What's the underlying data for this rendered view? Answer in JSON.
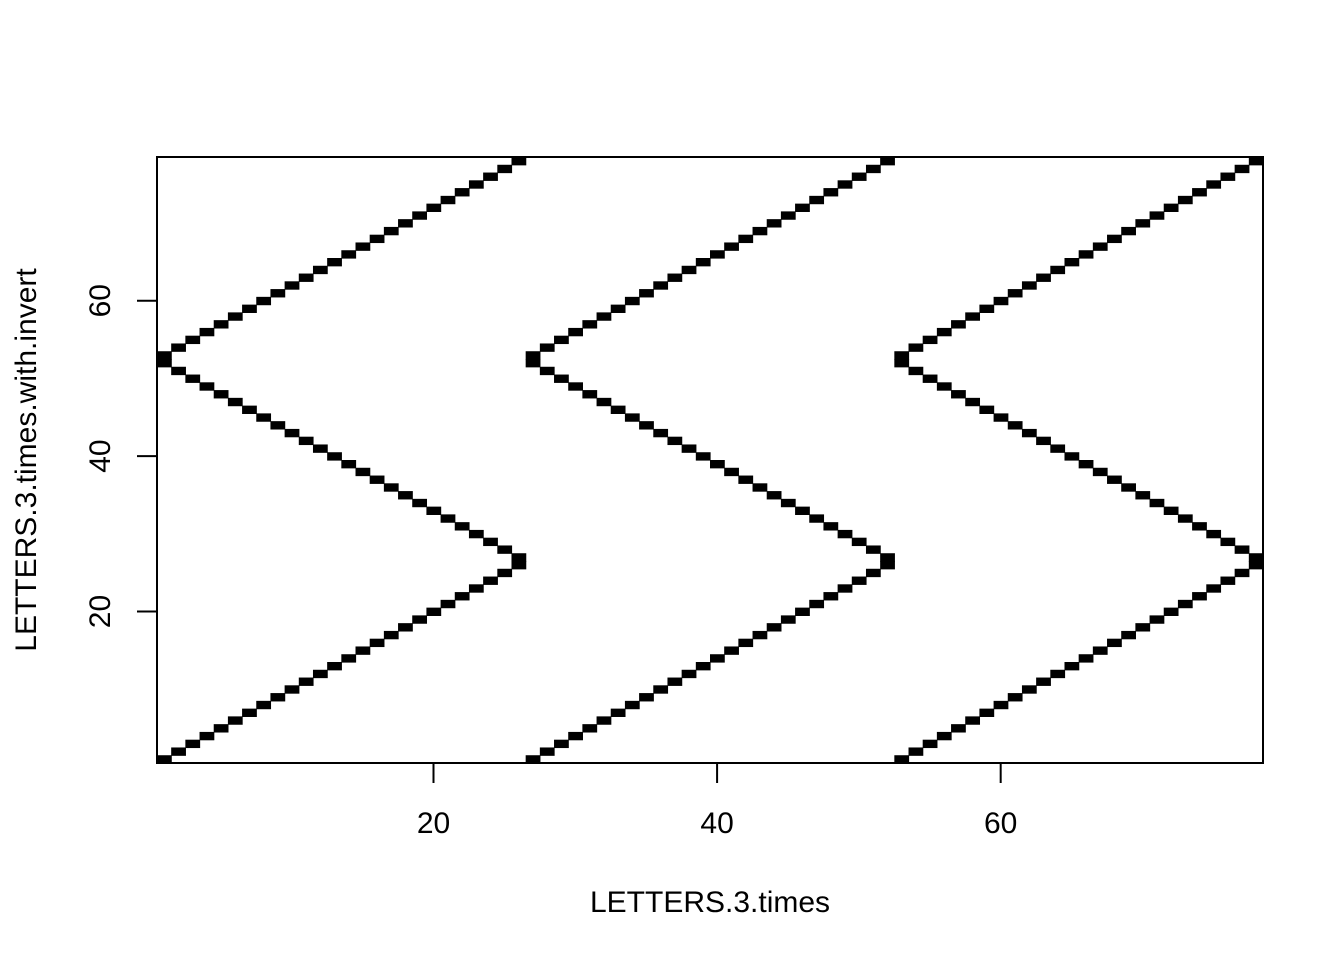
{
  "chart_data": {
    "type": "heatmap",
    "title": "",
    "xlabel": "LETTERS.3.times",
    "ylabel": "LETTERS.3.times.with.invert",
    "xlim": [
      0.5,
      78.5
    ],
    "ylim": [
      0.5,
      78.5
    ],
    "x_ticks": [
      20,
      40,
      60
    ],
    "y_ticks": [
      20,
      40,
      60
    ],
    "x_tick_labels": [
      "20",
      "40",
      "60"
    ],
    "y_tick_labels": [
      "20",
      "40",
      "60"
    ],
    "grid": false,
    "legend": "none",
    "cell_color": "#000000",
    "background_color": "#ffffff",
    "filled_cells": [
      {
        "x": 1,
        "y": 1
      },
      {
        "x": 2,
        "y": 2
      },
      {
        "x": 3,
        "y": 3
      },
      {
        "x": 4,
        "y": 4
      },
      {
        "x": 5,
        "y": 5
      },
      {
        "x": 6,
        "y": 6
      },
      {
        "x": 7,
        "y": 7
      },
      {
        "x": 8,
        "y": 8
      },
      {
        "x": 9,
        "y": 9
      },
      {
        "x": 10,
        "y": 10
      },
      {
        "x": 11,
        "y": 11
      },
      {
        "x": 12,
        "y": 12
      },
      {
        "x": 13,
        "y": 13
      },
      {
        "x": 14,
        "y": 14
      },
      {
        "x": 15,
        "y": 15
      },
      {
        "x": 16,
        "y": 16
      },
      {
        "x": 17,
        "y": 17
      },
      {
        "x": 18,
        "y": 18
      },
      {
        "x": 19,
        "y": 19
      },
      {
        "x": 20,
        "y": 20
      },
      {
        "x": 21,
        "y": 21
      },
      {
        "x": 22,
        "y": 22
      },
      {
        "x": 23,
        "y": 23
      },
      {
        "x": 24,
        "y": 24
      },
      {
        "x": 25,
        "y": 25
      },
      {
        "x": 26,
        "y": 26
      },
      {
        "x": 27,
        "y": 1
      },
      {
        "x": 28,
        "y": 2
      },
      {
        "x": 29,
        "y": 3
      },
      {
        "x": 30,
        "y": 4
      },
      {
        "x": 31,
        "y": 5
      },
      {
        "x": 32,
        "y": 6
      },
      {
        "x": 33,
        "y": 7
      },
      {
        "x": 34,
        "y": 8
      },
      {
        "x": 35,
        "y": 9
      },
      {
        "x": 36,
        "y": 10
      },
      {
        "x": 37,
        "y": 11
      },
      {
        "x": 38,
        "y": 12
      },
      {
        "x": 39,
        "y": 13
      },
      {
        "x": 40,
        "y": 14
      },
      {
        "x": 41,
        "y": 15
      },
      {
        "x": 42,
        "y": 16
      },
      {
        "x": 43,
        "y": 17
      },
      {
        "x": 44,
        "y": 18
      },
      {
        "x": 45,
        "y": 19
      },
      {
        "x": 46,
        "y": 20
      },
      {
        "x": 47,
        "y": 21
      },
      {
        "x": 48,
        "y": 22
      },
      {
        "x": 49,
        "y": 23
      },
      {
        "x": 50,
        "y": 24
      },
      {
        "x": 51,
        "y": 25
      },
      {
        "x": 52,
        "y": 26
      },
      {
        "x": 53,
        "y": 1
      },
      {
        "x": 54,
        "y": 2
      },
      {
        "x": 55,
        "y": 3
      },
      {
        "x": 56,
        "y": 4
      },
      {
        "x": 57,
        "y": 5
      },
      {
        "x": 58,
        "y": 6
      },
      {
        "x": 59,
        "y": 7
      },
      {
        "x": 60,
        "y": 8
      },
      {
        "x": 61,
        "y": 9
      },
      {
        "x": 62,
        "y": 10
      },
      {
        "x": 63,
        "y": 11
      },
      {
        "x": 64,
        "y": 12
      },
      {
        "x": 65,
        "y": 13
      },
      {
        "x": 66,
        "y": 14
      },
      {
        "x": 67,
        "y": 15
      },
      {
        "x": 68,
        "y": 16
      },
      {
        "x": 69,
        "y": 17
      },
      {
        "x": 70,
        "y": 18
      },
      {
        "x": 71,
        "y": 19
      },
      {
        "x": 72,
        "y": 20
      },
      {
        "x": 73,
        "y": 21
      },
      {
        "x": 74,
        "y": 22
      },
      {
        "x": 75,
        "y": 23
      },
      {
        "x": 76,
        "y": 24
      },
      {
        "x": 77,
        "y": 25
      },
      {
        "x": 78,
        "y": 26
      },
      {
        "x": 1,
        "y": 52
      },
      {
        "x": 2,
        "y": 51
      },
      {
        "x": 3,
        "y": 50
      },
      {
        "x": 4,
        "y": 49
      },
      {
        "x": 5,
        "y": 48
      },
      {
        "x": 6,
        "y": 47
      },
      {
        "x": 7,
        "y": 46
      },
      {
        "x": 8,
        "y": 45
      },
      {
        "x": 9,
        "y": 44
      },
      {
        "x": 10,
        "y": 43
      },
      {
        "x": 11,
        "y": 42
      },
      {
        "x": 12,
        "y": 41
      },
      {
        "x": 13,
        "y": 40
      },
      {
        "x": 14,
        "y": 39
      },
      {
        "x": 15,
        "y": 38
      },
      {
        "x": 16,
        "y": 37
      },
      {
        "x": 17,
        "y": 36
      },
      {
        "x": 18,
        "y": 35
      },
      {
        "x": 19,
        "y": 34
      },
      {
        "x": 20,
        "y": 33
      },
      {
        "x": 21,
        "y": 32
      },
      {
        "x": 22,
        "y": 31
      },
      {
        "x": 23,
        "y": 30
      },
      {
        "x": 24,
        "y": 29
      },
      {
        "x": 25,
        "y": 28
      },
      {
        "x": 26,
        "y": 27
      },
      {
        "x": 27,
        "y": 52
      },
      {
        "x": 28,
        "y": 51
      },
      {
        "x": 29,
        "y": 50
      },
      {
        "x": 30,
        "y": 49
      },
      {
        "x": 31,
        "y": 48
      },
      {
        "x": 32,
        "y": 47
      },
      {
        "x": 33,
        "y": 46
      },
      {
        "x": 34,
        "y": 45
      },
      {
        "x": 35,
        "y": 44
      },
      {
        "x": 36,
        "y": 43
      },
      {
        "x": 37,
        "y": 42
      },
      {
        "x": 38,
        "y": 41
      },
      {
        "x": 39,
        "y": 40
      },
      {
        "x": 40,
        "y": 39
      },
      {
        "x": 41,
        "y": 38
      },
      {
        "x": 42,
        "y": 37
      },
      {
        "x": 43,
        "y": 36
      },
      {
        "x": 44,
        "y": 35
      },
      {
        "x": 45,
        "y": 34
      },
      {
        "x": 46,
        "y": 33
      },
      {
        "x": 47,
        "y": 32
      },
      {
        "x": 48,
        "y": 31
      },
      {
        "x": 49,
        "y": 30
      },
      {
        "x": 50,
        "y": 29
      },
      {
        "x": 51,
        "y": 28
      },
      {
        "x": 52,
        "y": 27
      },
      {
        "x": 53,
        "y": 52
      },
      {
        "x": 54,
        "y": 51
      },
      {
        "x": 55,
        "y": 50
      },
      {
        "x": 56,
        "y": 49
      },
      {
        "x": 57,
        "y": 48
      },
      {
        "x": 58,
        "y": 47
      },
      {
        "x": 59,
        "y": 46
      },
      {
        "x": 60,
        "y": 45
      },
      {
        "x": 61,
        "y": 44
      },
      {
        "x": 62,
        "y": 43
      },
      {
        "x": 63,
        "y": 42
      },
      {
        "x": 64,
        "y": 41
      },
      {
        "x": 65,
        "y": 40
      },
      {
        "x": 66,
        "y": 39
      },
      {
        "x": 67,
        "y": 38
      },
      {
        "x": 68,
        "y": 37
      },
      {
        "x": 69,
        "y": 36
      },
      {
        "x": 70,
        "y": 35
      },
      {
        "x": 71,
        "y": 34
      },
      {
        "x": 72,
        "y": 33
      },
      {
        "x": 73,
        "y": 32
      },
      {
        "x": 74,
        "y": 31
      },
      {
        "x": 75,
        "y": 30
      },
      {
        "x": 76,
        "y": 29
      },
      {
        "x": 77,
        "y": 28
      },
      {
        "x": 78,
        "y": 27
      },
      {
        "x": 1,
        "y": 53
      },
      {
        "x": 2,
        "y": 54
      },
      {
        "x": 3,
        "y": 55
      },
      {
        "x": 4,
        "y": 56
      },
      {
        "x": 5,
        "y": 57
      },
      {
        "x": 6,
        "y": 58
      },
      {
        "x": 7,
        "y": 59
      },
      {
        "x": 8,
        "y": 60
      },
      {
        "x": 9,
        "y": 61
      },
      {
        "x": 10,
        "y": 62
      },
      {
        "x": 11,
        "y": 63
      },
      {
        "x": 12,
        "y": 64
      },
      {
        "x": 13,
        "y": 65
      },
      {
        "x": 14,
        "y": 66
      },
      {
        "x": 15,
        "y": 67
      },
      {
        "x": 16,
        "y": 68
      },
      {
        "x": 17,
        "y": 69
      },
      {
        "x": 18,
        "y": 70
      },
      {
        "x": 19,
        "y": 71
      },
      {
        "x": 20,
        "y": 72
      },
      {
        "x": 21,
        "y": 73
      },
      {
        "x": 22,
        "y": 74
      },
      {
        "x": 23,
        "y": 75
      },
      {
        "x": 24,
        "y": 76
      },
      {
        "x": 25,
        "y": 77
      },
      {
        "x": 26,
        "y": 78
      },
      {
        "x": 27,
        "y": 53
      },
      {
        "x": 28,
        "y": 54
      },
      {
        "x": 29,
        "y": 55
      },
      {
        "x": 30,
        "y": 56
      },
      {
        "x": 31,
        "y": 57
      },
      {
        "x": 32,
        "y": 58
      },
      {
        "x": 33,
        "y": 59
      },
      {
        "x": 34,
        "y": 60
      },
      {
        "x": 35,
        "y": 61
      },
      {
        "x": 36,
        "y": 62
      },
      {
        "x": 37,
        "y": 63
      },
      {
        "x": 38,
        "y": 64
      },
      {
        "x": 39,
        "y": 65
      },
      {
        "x": 40,
        "y": 66
      },
      {
        "x": 41,
        "y": 67
      },
      {
        "x": 42,
        "y": 68
      },
      {
        "x": 43,
        "y": 69
      },
      {
        "x": 44,
        "y": 70
      },
      {
        "x": 45,
        "y": 71
      },
      {
        "x": 46,
        "y": 72
      },
      {
        "x": 47,
        "y": 73
      },
      {
        "x": 48,
        "y": 74
      },
      {
        "x": 49,
        "y": 75
      },
      {
        "x": 50,
        "y": 76
      },
      {
        "x": 51,
        "y": 77
      },
      {
        "x": 52,
        "y": 78
      },
      {
        "x": 53,
        "y": 53
      },
      {
        "x": 54,
        "y": 54
      },
      {
        "x": 55,
        "y": 55
      },
      {
        "x": 56,
        "y": 56
      },
      {
        "x": 57,
        "y": 57
      },
      {
        "x": 58,
        "y": 58
      },
      {
        "x": 59,
        "y": 59
      },
      {
        "x": 60,
        "y": 60
      },
      {
        "x": 61,
        "y": 61
      },
      {
        "x": 62,
        "y": 62
      },
      {
        "x": 63,
        "y": 63
      },
      {
        "x": 64,
        "y": 64
      },
      {
        "x": 65,
        "y": 65
      },
      {
        "x": 66,
        "y": 66
      },
      {
        "x": 67,
        "y": 67
      },
      {
        "x": 68,
        "y": 68
      },
      {
        "x": 69,
        "y": 69
      },
      {
        "x": 70,
        "y": 70
      },
      {
        "x": 71,
        "y": 71
      },
      {
        "x": 72,
        "y": 72
      },
      {
        "x": 73,
        "y": 73
      },
      {
        "x": 74,
        "y": 74
      },
      {
        "x": 75,
        "y": 75
      },
      {
        "x": 76,
        "y": 76
      },
      {
        "x": 77,
        "y": 77
      },
      {
        "x": 78,
        "y": 78
      }
    ]
  }
}
